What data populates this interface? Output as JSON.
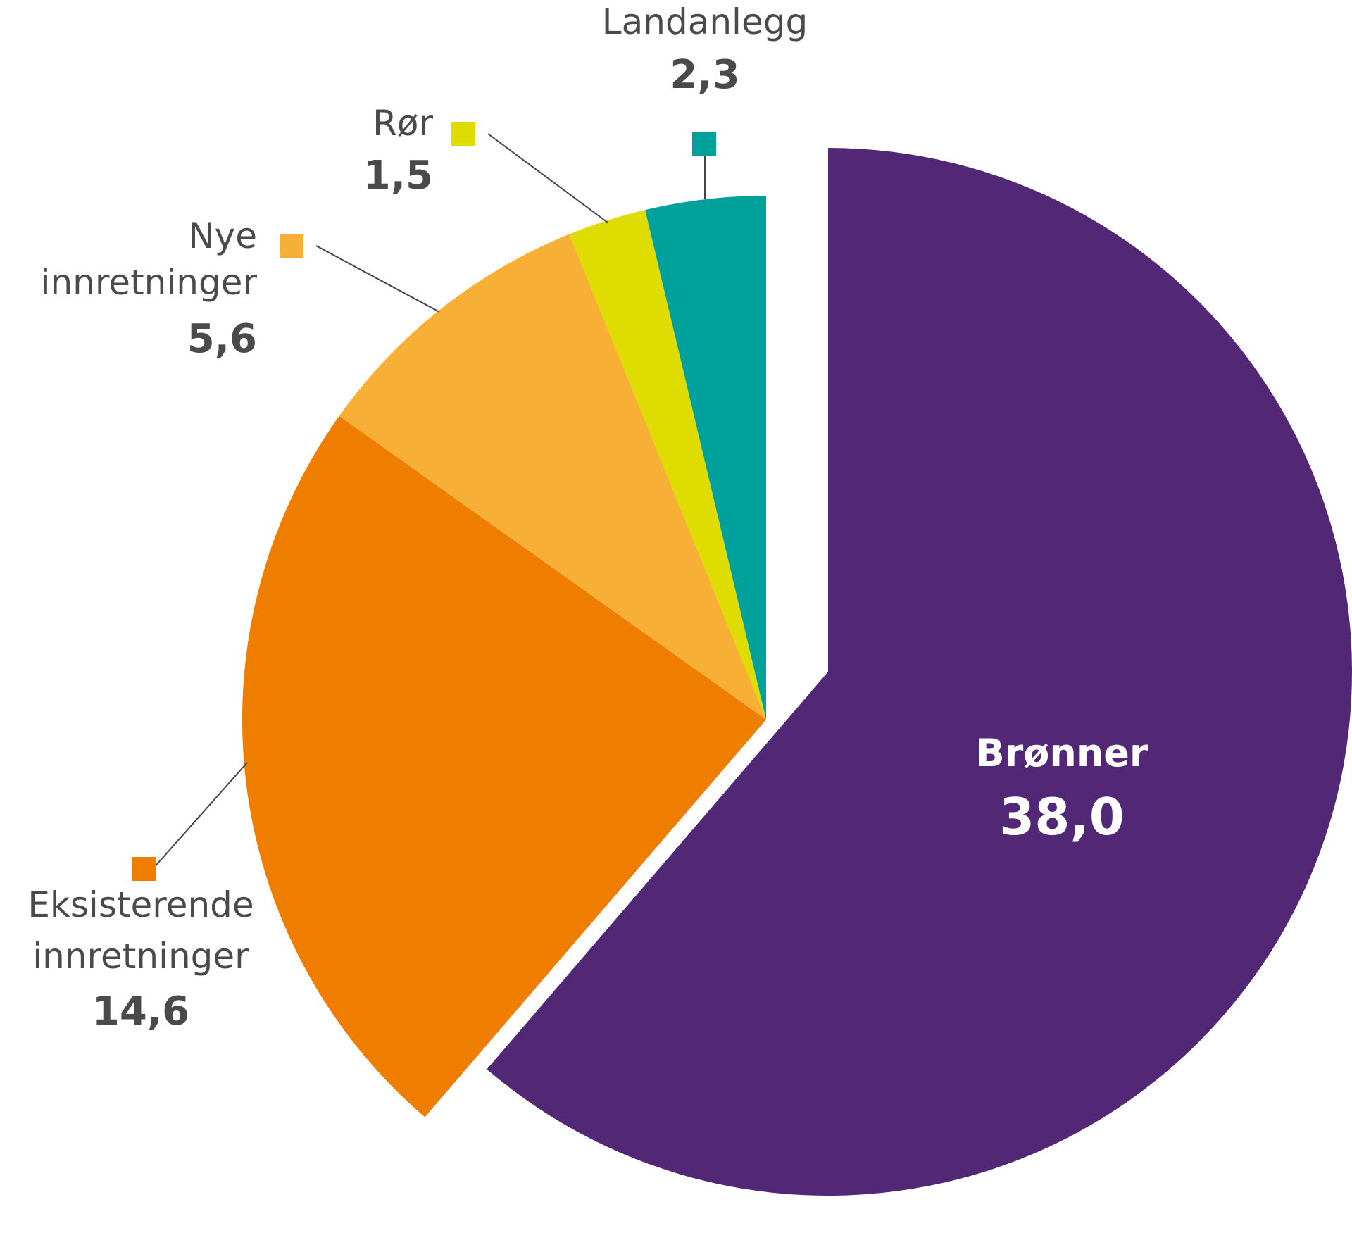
{
  "chart_data": {
    "type": "pie",
    "slices": [
      {
        "label": "Brønner",
        "label_lines": [
          "Brønner"
        ],
        "value": 38.0,
        "value_text": "38,0",
        "color": "#512776",
        "exploded": true
      },
      {
        "label": "Eksisterende innretninger",
        "label_lines": [
          "Eksisterende",
          "innretninger"
        ],
        "value": 14.6,
        "value_text": "14,6",
        "color": "#ee7d00"
      },
      {
        "label": "Nye innretninger",
        "label_lines": [
          "Nye",
          "innretninger"
        ],
        "value": 5.6,
        "value_text": "5,6",
        "color": "#f7b035"
      },
      {
        "label": "Rør",
        "label_lines": [
          "Rør"
        ],
        "value": 1.5,
        "value_text": "1,5",
        "color": "#dedc00"
      },
      {
        "label": "Landanlegg",
        "label_lines": [
          "Landanlegg"
        ],
        "value": 2.3,
        "value_text": "2,3",
        "color": "#00a19b"
      }
    ]
  }
}
